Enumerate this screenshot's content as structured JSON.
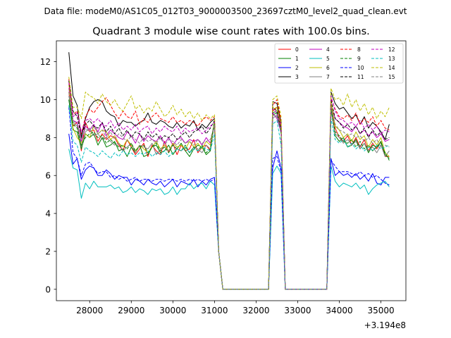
{
  "chart_data": {
    "type": "line",
    "suptitle": "Data file: modeM0/AS1C05_012T03_9000003500_23697cztM0_level2_quad_clean.evt",
    "title": "Quadrant 3 module wise count rates with 100.0s bins.",
    "xlabel": "",
    "ylabel": "",
    "x_offset_label": "+3.194e8",
    "xlim": [
      27200,
      35600
    ],
    "ylim": [
      -0.6,
      13.1
    ],
    "xticks": [
      "28000",
      "29000",
      "30000",
      "31000",
      "32000",
      "33000",
      "34000",
      "35000"
    ],
    "yticks": [
      "0",
      "2",
      "4",
      "6",
      "8",
      "10",
      "12"
    ],
    "legend_location": "upper right",
    "segments": {
      "a_x": [
        27500,
        27600,
        27700,
        27800,
        27900,
        28000,
        28100,
        28200,
        28300,
        28400,
        28500,
        28600,
        28700,
        28800,
        28900,
        29000,
        29100,
        29200,
        29300,
        29400,
        29500,
        29600,
        29700,
        29800,
        29900,
        30000,
        30100,
        30200,
        30300,
        30400,
        30500,
        30600,
        30700,
        30800,
        30900,
        31000
      ],
      "gap1_x": [
        31100,
        31200,
        31300,
        32300
      ],
      "b_x": [
        32400,
        32500,
        32600
      ],
      "gap2_x": [
        32700,
        33700
      ],
      "c_x": [
        33800,
        33900,
        34000,
        34100,
        34200,
        34300,
        34400,
        34500,
        34600,
        34700,
        34800,
        34900,
        35000,
        35100,
        35200
      ]
    },
    "series": [
      {
        "name": "0",
        "color": "#ff0000",
        "dash": "solid",
        "a": [
          10.4,
          8.6,
          8.8,
          7.3,
          8.8,
          8.3,
          8.4,
          7.8,
          8.2,
          7.9,
          8.1,
          8.0,
          7.6,
          7.3,
          7.9,
          7.5,
          7.1,
          7.4,
          7.7,
          7.0,
          7.6,
          7.3,
          7.1,
          7.8,
          7.2,
          7.7,
          7.1,
          7.6,
          7.3,
          7.4,
          7.9,
          7.2,
          7.5,
          7.6,
          7.3,
          8.9
        ],
        "b": [
          9.4,
          9.6,
          8.6
        ],
        "c": [
          9.8,
          8.5,
          8.0,
          7.8,
          8.1,
          7.6,
          8.0,
          7.5,
          7.9,
          7.3,
          7.7,
          7.4,
          7.8,
          7.0,
          7.0
        ]
      },
      {
        "name": "1",
        "color": "#008000",
        "dash": "solid",
        "a": [
          10.0,
          8.4,
          8.3,
          7.4,
          8.2,
          8.0,
          8.2,
          7.6,
          8.0,
          7.5,
          7.6,
          7.8,
          7.3,
          7.4,
          7.0,
          7.5,
          7.2,
          7.6,
          7.0,
          7.1,
          7.5,
          7.6,
          7.2,
          7.3,
          7.6,
          7.1,
          7.4,
          7.7,
          7.3,
          7.0,
          7.4,
          7.6,
          7.5,
          7.1,
          7.3,
          8.9
        ],
        "b": [
          9.2,
          9.3,
          8.2
        ],
        "c": [
          9.6,
          8.1,
          7.8,
          8.0,
          7.5,
          7.6,
          7.9,
          7.4,
          7.7,
          7.2,
          7.6,
          7.5,
          7.8,
          7.1,
          6.9
        ]
      },
      {
        "name": "2",
        "color": "#0000ff",
        "dash": "solid",
        "a": [
          8.2,
          6.6,
          6.9,
          5.8,
          6.3,
          6.5,
          6.4,
          6.0,
          6.0,
          6.3,
          6.1,
          5.8,
          6.0,
          5.9,
          5.9,
          5.5,
          5.8,
          5.7,
          5.5,
          5.8,
          5.6,
          5.5,
          5.7,
          5.4,
          5.6,
          5.8,
          5.4,
          5.7,
          5.6,
          5.5,
          5.8,
          5.4,
          5.7,
          5.5,
          5.8,
          5.9
        ],
        "b": [
          6.4,
          7.3,
          6.4
        ],
        "c": [
          6.9,
          6.0,
          6.2,
          6.0,
          6.1,
          5.9,
          6.1,
          5.8,
          6.0,
          5.7,
          6.1,
          5.6,
          5.5,
          5.9,
          5.9
        ]
      },
      {
        "name": "3",
        "color": "#000000",
        "dash": "solid",
        "a": [
          12.5,
          10.2,
          9.7,
          8.0,
          9.0,
          9.6,
          9.9,
          10.0,
          9.9,
          9.4,
          9.2,
          9.1,
          8.6,
          8.9,
          8.8,
          8.8,
          8.6,
          8.8,
          8.9,
          9.3,
          8.8,
          8.7,
          8.9,
          8.8,
          8.6,
          8.5,
          8.8,
          8.5,
          8.7,
          8.6,
          8.9,
          8.4,
          8.7,
          8.5,
          8.8,
          9.0
        ],
        "b": [
          9.9,
          9.8,
          8.8
        ],
        "c": [
          10.4,
          9.8,
          9.5,
          9.6,
          9.3,
          9.0,
          9.2,
          8.7,
          9.1,
          8.5,
          8.8,
          8.6,
          8.3,
          7.9,
          8.7
        ]
      },
      {
        "name": "4",
        "color": "#bf00bf",
        "dash": "solid",
        "a": [
          10.6,
          8.9,
          8.8,
          7.8,
          8.6,
          8.4,
          8.7,
          8.3,
          8.8,
          8.1,
          8.4,
          8.2,
          8.0,
          7.9,
          8.3,
          8.1,
          7.7,
          8.2,
          7.8,
          8.1,
          7.9,
          7.8,
          8.1,
          7.7,
          8.0,
          7.6,
          7.9,
          8.0,
          7.7,
          7.9,
          7.8,
          7.9,
          7.6,
          8.0,
          7.7,
          8.8
        ],
        "b": [
          9.3,
          9.0,
          8.3
        ],
        "c": [
          9.7,
          9.0,
          8.8,
          8.6,
          8.5,
          8.3,
          8.6,
          8.2,
          8.4,
          8.1,
          8.3,
          8.0,
          8.2,
          7.8,
          7.9
        ]
      },
      {
        "name": "5",
        "color": "#00bfbf",
        "dash": "solid",
        "a": [
          7.4,
          6.4,
          6.3,
          4.8,
          5.6,
          5.3,
          5.7,
          5.4,
          5.4,
          5.4,
          5.5,
          5.3,
          5.4,
          5.1,
          5.2,
          5.4,
          5.1,
          5.3,
          5.2,
          5.0,
          5.3,
          5.2,
          5.3,
          5.0,
          5.1,
          5.4,
          5.0,
          5.3,
          5.3,
          5.6,
          5.3,
          5.5,
          5.6,
          5.3,
          5.7,
          5.5
        ],
        "b": [
          6.1,
          6.5,
          6.1
        ],
        "c": [
          6.5,
          5.7,
          5.4,
          5.6,
          5.5,
          5.4,
          5.6,
          5.3,
          5.5,
          5.0,
          5.3,
          5.5,
          5.6,
          5.7,
          5.4
        ]
      },
      {
        "name": "6",
        "color": "#bfbf00",
        "dash": "solid",
        "a": [
          10.8,
          8.5,
          8.0,
          7.7,
          8.2,
          8.0,
          8.6,
          8.2,
          8.4,
          8.3,
          7.9,
          8.1,
          7.7,
          7.5,
          7.9,
          7.6,
          7.3,
          7.6,
          7.4,
          7.2,
          7.5,
          7.8,
          7.4,
          7.6,
          7.3,
          7.7,
          7.5,
          7.6,
          7.4,
          7.8,
          7.5,
          7.7,
          7.4,
          7.8,
          7.6,
          8.9
        ],
        "b": [
          9.5,
          9.6,
          8.5
        ],
        "c": [
          9.9,
          8.6,
          8.4,
          8.0,
          8.2,
          7.8,
          8.3,
          7.9,
          8.1,
          7.5,
          7.9,
          7.6,
          8.0,
          7.2,
          7.0
        ]
      },
      {
        "name": "7",
        "color": "#808080",
        "dash": "solid",
        "a": [
          10.2,
          8.8,
          8.6,
          7.5,
          8.3,
          8.5,
          8.1,
          8.2,
          7.9,
          8.0,
          7.8,
          7.6,
          7.7,
          7.3,
          7.5,
          7.7,
          7.2,
          7.6,
          7.5,
          7.4,
          7.7,
          7.1,
          7.4,
          7.5,
          7.3,
          7.6,
          7.4,
          7.3,
          7.5,
          7.2,
          7.5,
          7.4,
          7.2,
          7.6,
          7.4,
          8.7
        ],
        "b": [
          9.0,
          9.2,
          8.4
        ],
        "c": [
          9.4,
          8.2,
          8.0,
          7.7,
          7.9,
          7.6,
          7.8,
          7.4,
          7.7,
          7.3,
          7.5,
          7.2,
          7.6,
          7.0,
          7.3
        ]
      },
      {
        "name": "8",
        "color": "#ff0000",
        "dash": "dashed",
        "a": [
          11.1,
          9.2,
          9.4,
          8.2,
          9.1,
          9.5,
          9.3,
          9.6,
          9.9,
          10.1,
          9.7,
          9.3,
          9.0,
          9.4,
          9.1,
          9.0,
          9.4,
          8.7,
          9.0,
          8.8,
          9.1,
          9.3,
          9.0,
          8.9,
          8.8,
          9.1,
          8.8,
          8.9,
          8.7,
          8.9,
          8.8,
          8.6,
          8.9,
          9.1,
          8.9,
          9.1
        ],
        "b": [
          9.7,
          10.0,
          8.9
        ],
        "c": [
          10.1,
          9.5,
          9.1,
          9.0,
          9.2,
          8.9,
          9.3,
          8.7,
          9.0,
          8.8,
          9.1,
          8.6,
          8.9,
          8.5,
          8.4
        ]
      },
      {
        "name": "9",
        "color": "#008000",
        "dash": "dashed",
        "a": [
          10.0,
          8.7,
          8.5,
          7.6,
          8.0,
          8.2,
          8.3,
          8.0,
          8.1,
          7.7,
          7.9,
          7.7,
          7.5,
          7.6,
          7.4,
          7.7,
          7.3,
          7.5,
          7.6,
          7.2,
          7.5,
          7.7,
          7.3,
          7.5,
          7.2,
          7.6,
          7.4,
          7.3,
          7.6,
          7.2,
          7.5,
          7.3,
          7.6,
          7.2,
          7.4,
          8.9
        ],
        "b": [
          9.3,
          9.4,
          8.3
        ],
        "c": [
          9.5,
          8.3,
          8.1,
          7.8,
          7.7,
          7.9,
          7.5,
          7.8,
          7.4,
          7.6,
          7.3,
          7.5,
          7.7,
          7.2,
          6.8
        ]
      },
      {
        "name": "10",
        "color": "#0000ff",
        "dash": "dashed",
        "a": [
          9.6,
          7.2,
          6.9,
          6.0,
          6.6,
          6.7,
          6.4,
          6.1,
          6.2,
          6.2,
          5.9,
          6.0,
          5.8,
          5.9,
          5.7,
          5.8,
          5.9,
          5.7,
          5.8,
          5.8,
          5.7,
          5.8,
          5.8,
          5.7,
          5.8,
          5.8,
          5.7,
          5.8,
          5.7,
          5.8,
          5.7,
          5.8,
          5.7,
          5.8,
          5.7,
          5.8
        ],
        "b": [
          6.9,
          7.0,
          6.2
        ],
        "c": [
          6.8,
          6.5,
          6.2,
          6.2,
          6.2,
          6.1,
          6.0,
          6.2,
          6.0,
          6.1,
          5.9,
          6.0,
          5.8,
          5.6,
          5.5
        ]
      },
      {
        "name": "11",
        "color": "#000000",
        "dash": "dashed",
        "a": [
          11.0,
          9.4,
          9.1,
          8.1,
          8.7,
          8.9,
          8.6,
          8.5,
          8.8,
          8.3,
          8.6,
          8.2,
          8.5,
          8.1,
          8.4,
          8.0,
          8.3,
          8.2,
          7.9,
          8.3,
          8.0,
          8.2,
          7.9,
          8.1,
          8.0,
          8.2,
          7.9,
          8.1,
          8.3,
          8.0,
          8.3,
          8.4,
          8.6,
          8.2,
          8.5,
          8.9
        ],
        "b": [
          9.6,
          9.4,
          8.4
        ],
        "c": [
          10.0,
          9.0,
          8.8,
          8.5,
          8.7,
          8.4,
          8.6,
          8.2,
          8.5,
          8.0,
          8.4,
          8.1,
          8.3,
          7.9,
          8.0
        ]
      },
      {
        "name": "12",
        "color": "#bf00bf",
        "dash": "dashed",
        "a": [
          10.9,
          9.1,
          9.3,
          8.3,
          8.9,
          9.0,
          8.8,
          9.0,
          8.7,
          8.6,
          8.9,
          8.5,
          8.8,
          8.4,
          8.6,
          8.4,
          8.7,
          8.3,
          8.5,
          8.6,
          8.2,
          8.5,
          8.3,
          8.6,
          8.4,
          8.3,
          8.6,
          8.2,
          8.5,
          8.3,
          8.4,
          8.5,
          8.2,
          8.4,
          8.6,
          8.8
        ],
        "b": [
          9.5,
          9.3,
          8.6
        ],
        "c": [
          10.2,
          9.4,
          9.0,
          8.9,
          8.7,
          8.8,
          8.6,
          8.9,
          8.5,
          8.7,
          8.4,
          8.6,
          8.2,
          8.4,
          8.3
        ]
      },
      {
        "name": "13",
        "color": "#00bfbf",
        "dash": "dashed",
        "a": [
          9.7,
          7.8,
          7.6,
          6.7,
          7.5,
          7.3,
          7.2,
          7.0,
          7.3,
          7.1,
          6.9,
          7.2,
          7.0,
          7.3,
          7.1,
          7.2,
          7.0,
          7.2,
          7.1,
          7.3,
          7.0,
          7.2,
          7.1,
          7.3,
          7.0,
          7.2,
          7.4,
          7.3,
          7.5,
          7.2,
          7.4,
          7.3,
          7.5,
          7.4,
          7.3,
          8.2
        ],
        "b": [
          8.7,
          8.9,
          7.6
        ],
        "c": [
          9.0,
          7.9,
          7.7,
          7.9,
          7.5,
          7.7,
          7.4,
          7.6,
          7.3,
          7.5,
          7.3,
          7.6,
          7.4,
          7.5,
          7.6
        ]
      },
      {
        "name": "14",
        "color": "#bfbf00",
        "dash": "dashed",
        "a": [
          11.2,
          9.6,
          9.6,
          9.0,
          10.4,
          10.2,
          10.1,
          9.8,
          10.3,
          9.9,
          9.7,
          10.0,
          9.6,
          9.4,
          9.8,
          10.2,
          9.5,
          9.7,
          9.3,
          9.6,
          9.4,
          9.9,
          9.5,
          9.1,
          9.3,
          9.7,
          9.2,
          9.5,
          9.1,
          9.4,
          9.0,
          9.3,
          8.9,
          9.2,
          9.0,
          9.2
        ],
        "b": [
          10.0,
          10.2,
          9.1
        ],
        "c": [
          10.6,
          10.0,
          10.1,
          9.7,
          10.3,
          9.6,
          10.0,
          9.4,
          9.8,
          9.2,
          9.6,
          9.0,
          9.4,
          9.1,
          9.6
        ]
      },
      {
        "name": "15",
        "color": "#808080",
        "dash": "dashed",
        "a": [
          10.4,
          8.9,
          8.7,
          7.9,
          8.5,
          8.3,
          8.6,
          8.2,
          8.4,
          8.0,
          8.3,
          7.9,
          8.2,
          8.0,
          7.8,
          8.1,
          7.9,
          7.7,
          8.0,
          7.8,
          7.9,
          7.7,
          8.0,
          7.6,
          7.9,
          7.8,
          7.6,
          7.9,
          7.7,
          7.8,
          7.6,
          7.9,
          7.7,
          7.8,
          7.9,
          8.7
        ],
        "b": [
          9.2,
          9.1,
          8.3
        ],
        "c": [
          9.6,
          8.7,
          8.4,
          8.3,
          8.1,
          8.2,
          8.0,
          8.1,
          7.8,
          8.0,
          7.7,
          7.9,
          7.5,
          7.6,
          7.5
        ]
      }
    ]
  }
}
